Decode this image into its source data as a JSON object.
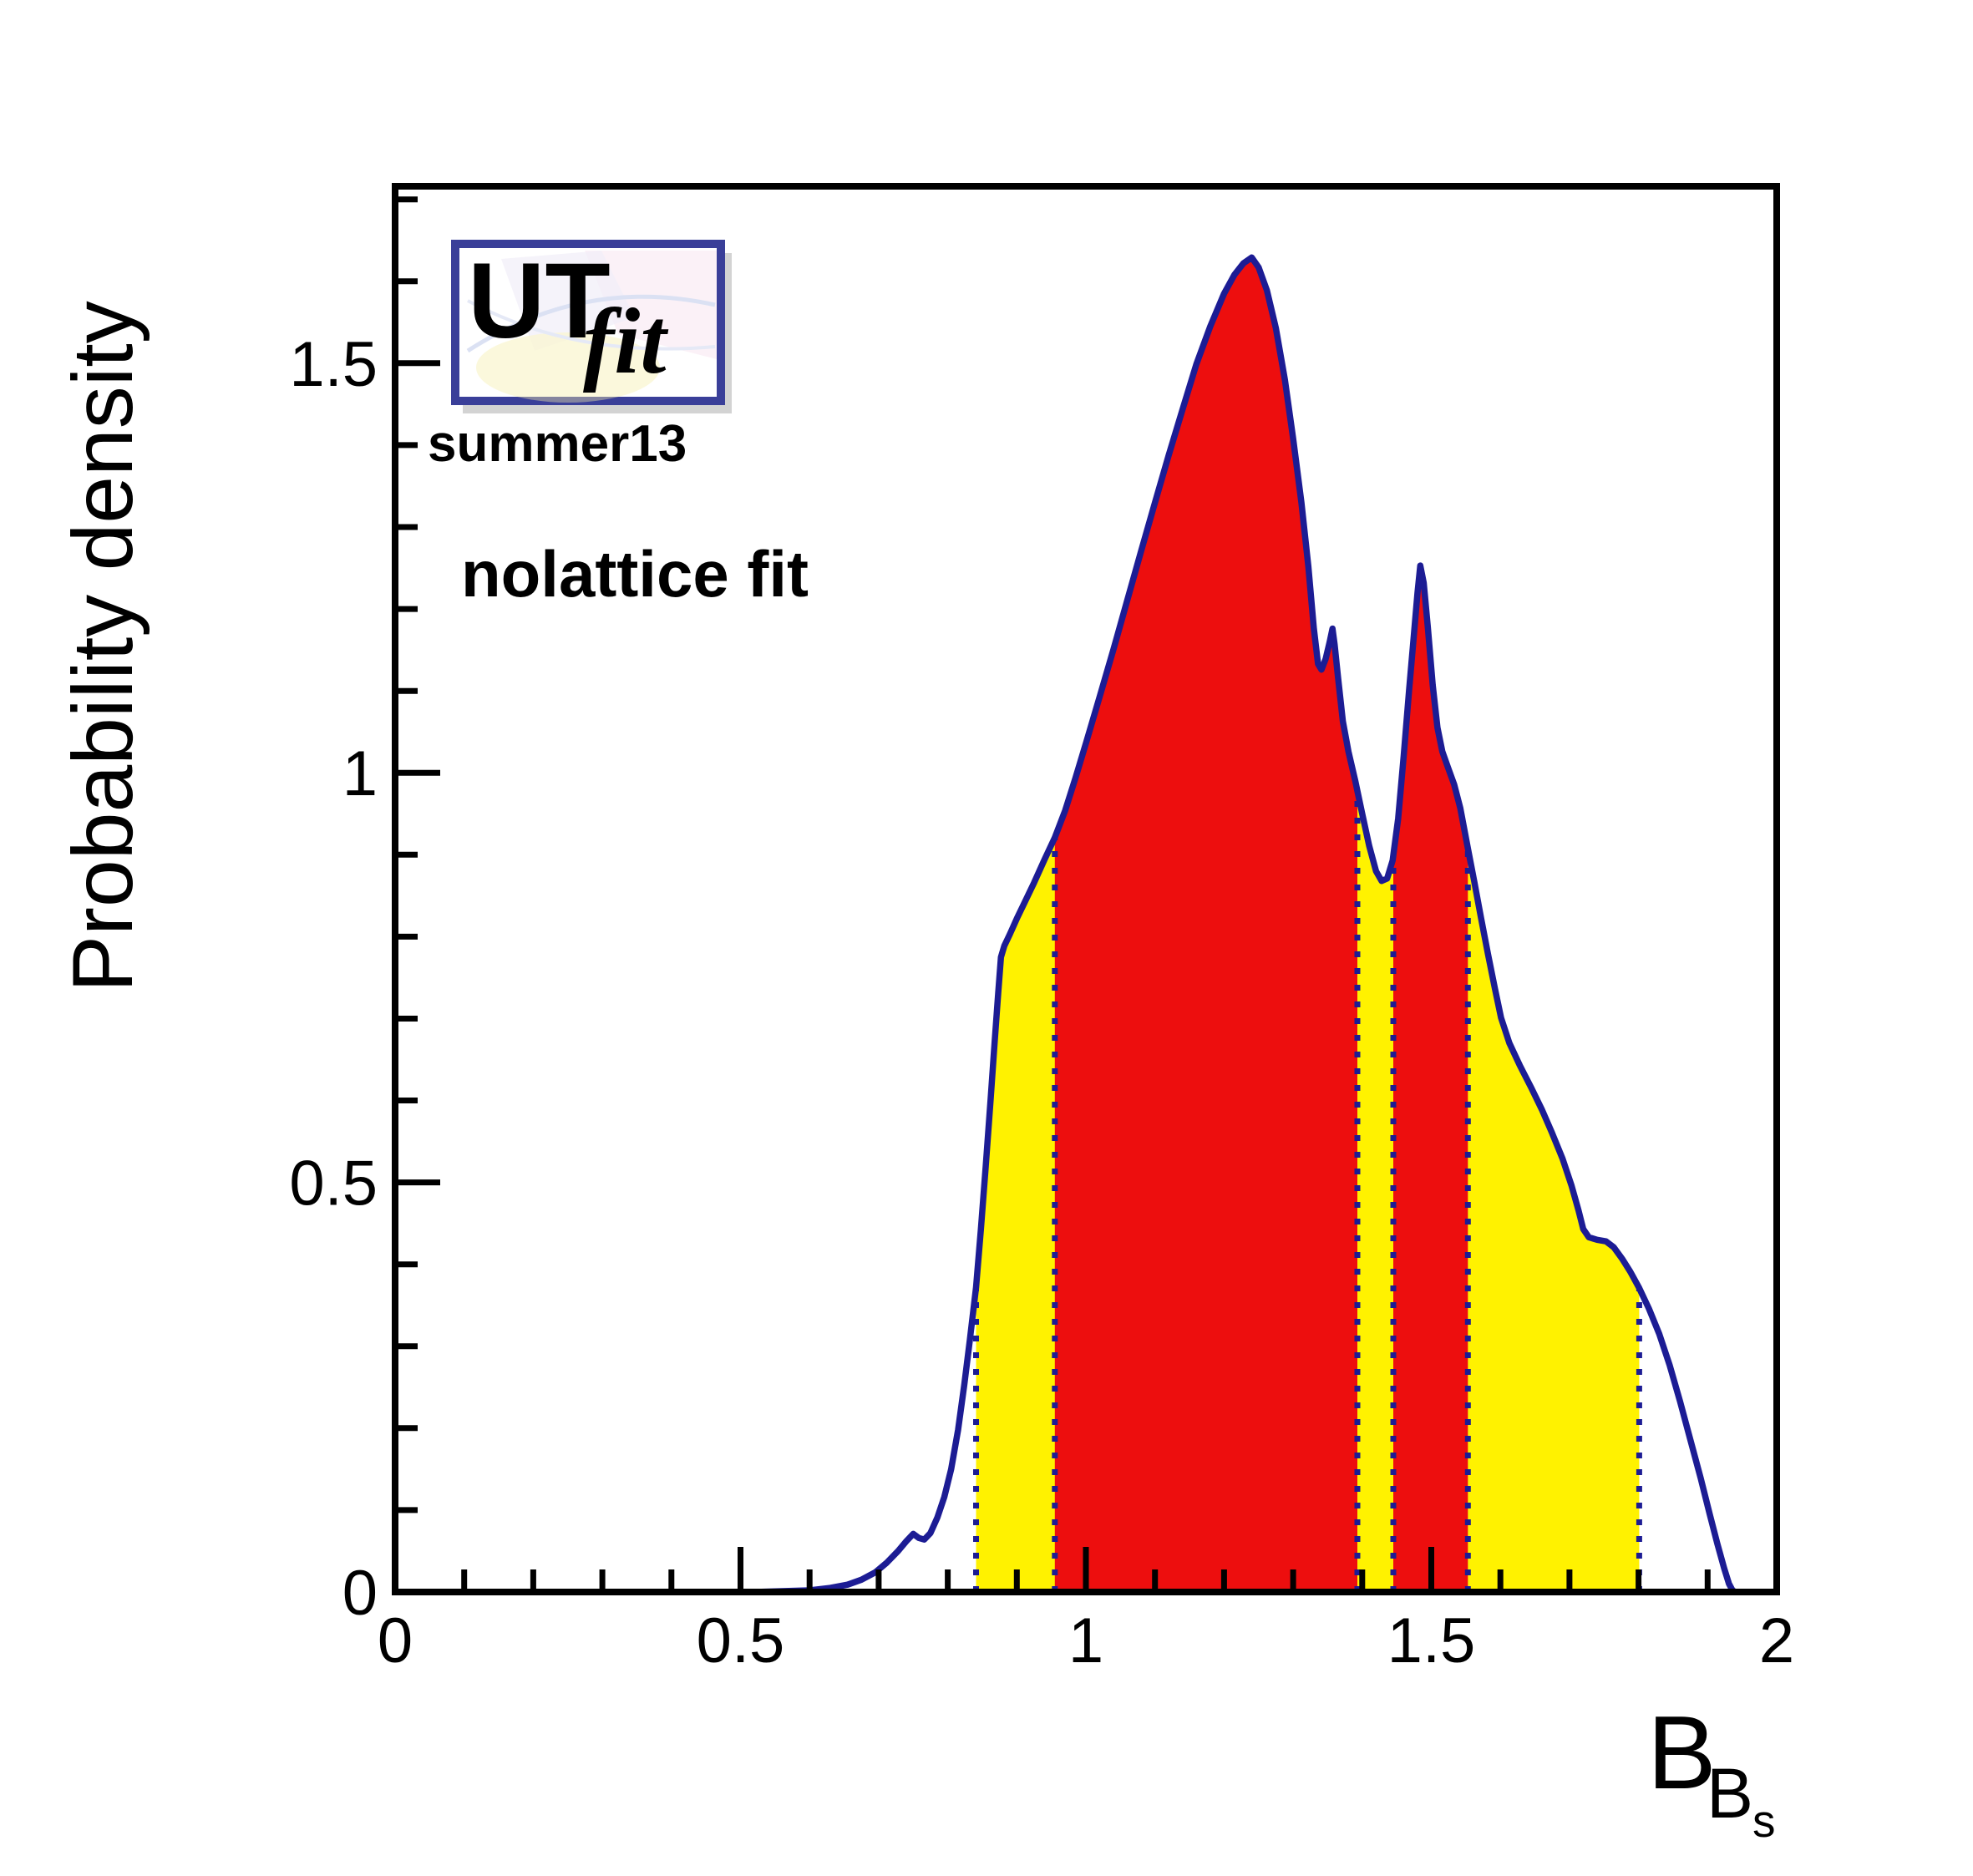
{
  "header": {
    "logo": {
      "ut": "UT",
      "fit": "fit"
    },
    "edition": "summer13",
    "fit_label": "nolattice fit"
  },
  "axes": {
    "x": {
      "title_main": "B",
      "title_sub": "B",
      "title_subsub": "s",
      "range": [
        0,
        2
      ],
      "major_tick_values": [
        0,
        0.5,
        1,
        1.5,
        2
      ],
      "major_tick_labels": [
        "0",
        "0.5",
        "1",
        "1.5",
        "2"
      ],
      "minor_tick_step": 0.1
    },
    "y": {
      "title": "Probability density",
      "range": [
        0,
        1.716
      ],
      "major_tick_values": [
        0,
        0.5,
        1,
        1.5
      ],
      "major_tick_labels": [
        "0",
        "0.5",
        "1",
        "1.5"
      ],
      "minor_tick_step": 0.1
    }
  },
  "chart_data": {
    "type": "area",
    "title": "",
    "xlabel": "B_{B_s}",
    "ylabel": "Probability density",
    "xlim": [
      0,
      2
    ],
    "ylim": [
      0,
      1.716
    ],
    "grid": false,
    "legend": "none",
    "peak": {
      "x": 1.24,
      "value": 1.63
    },
    "local_min": {
      "x": 1.34,
      "value": 1.13
    },
    "dip_min": {
      "x": 1.43,
      "value": 0.87
    },
    "second_peak": {
      "x": 1.48,
      "value": 1.25
    },
    "intervals_68pct": [
      [
        0.955,
        1.393
      ],
      [
        1.445,
        1.553
      ]
    ],
    "interval_95pct": [
      [
        0.841,
        1.801
      ]
    ],
    "curve": [
      [
        0.52,
        0.0
      ],
      [
        0.56,
        0.001
      ],
      [
        0.6,
        0.002
      ],
      [
        0.63,
        0.005
      ],
      [
        0.655,
        0.009
      ],
      [
        0.675,
        0.015
      ],
      [
        0.695,
        0.024
      ],
      [
        0.712,
        0.036
      ],
      [
        0.728,
        0.05
      ],
      [
        0.74,
        0.062
      ],
      [
        0.75,
        0.071
      ],
      [
        0.758,
        0.066
      ],
      [
        0.766,
        0.064
      ],
      [
        0.775,
        0.072
      ],
      [
        0.785,
        0.091
      ],
      [
        0.795,
        0.116
      ],
      [
        0.805,
        0.15
      ],
      [
        0.815,
        0.198
      ],
      [
        0.824,
        0.253
      ],
      [
        0.832,
        0.308
      ],
      [
        0.841,
        0.372
      ],
      [
        0.848,
        0.443
      ],
      [
        0.855,
        0.52
      ],
      [
        0.862,
        0.601
      ],
      [
        0.868,
        0.672
      ],
      [
        0.873,
        0.731
      ],
      [
        0.877,
        0.775
      ],
      [
        0.882,
        0.789
      ],
      [
        0.89,
        0.803
      ],
      [
        0.9,
        0.822
      ],
      [
        0.912,
        0.843
      ],
      [
        0.925,
        0.866
      ],
      [
        0.94,
        0.894
      ],
      [
        0.955,
        0.921
      ],
      [
        0.97,
        0.954
      ],
      [
        0.985,
        0.994
      ],
      [
        1.0,
        1.036
      ],
      [
        1.02,
        1.093
      ],
      [
        1.04,
        1.151
      ],
      [
        1.06,
        1.211
      ],
      [
        1.08,
        1.271
      ],
      [
        1.1,
        1.33
      ],
      [
        1.12,
        1.388
      ],
      [
        1.14,
        1.444
      ],
      [
        1.16,
        1.499
      ],
      [
        1.18,
        1.545
      ],
      [
        1.2,
        1.585
      ],
      [
        1.215,
        1.608
      ],
      [
        1.228,
        1.622
      ],
      [
        1.24,
        1.629
      ],
      [
        1.25,
        1.617
      ],
      [
        1.262,
        1.589
      ],
      [
        1.275,
        1.543
      ],
      [
        1.288,
        1.48
      ],
      [
        1.3,
        1.408
      ],
      [
        1.312,
        1.33
      ],
      [
        1.322,
        1.252
      ],
      [
        1.33,
        1.176
      ],
      [
        1.336,
        1.133
      ],
      [
        1.341,
        1.126
      ],
      [
        1.347,
        1.139
      ],
      [
        1.353,
        1.16
      ],
      [
        1.357,
        1.176
      ],
      [
        1.36,
        1.157
      ],
      [
        1.365,
        1.116
      ],
      [
        1.372,
        1.063
      ],
      [
        1.38,
        1.026
      ],
      [
        1.39,
        0.99
      ],
      [
        1.4,
        0.95
      ],
      [
        1.41,
        0.911
      ],
      [
        1.42,
        0.88
      ],
      [
        1.428,
        0.868
      ],
      [
        1.436,
        0.871
      ],
      [
        1.444,
        0.893
      ],
      [
        1.452,
        0.944
      ],
      [
        1.46,
        1.02
      ],
      [
        1.468,
        1.102
      ],
      [
        1.475,
        1.17
      ],
      [
        1.48,
        1.22
      ],
      [
        1.484,
        1.253
      ],
      [
        1.489,
        1.232
      ],
      [
        1.495,
        1.177
      ],
      [
        1.502,
        1.107
      ],
      [
        1.509,
        1.055
      ],
      [
        1.516,
        1.026
      ],
      [
        1.524,
        1.007
      ],
      [
        1.533,
        0.986
      ],
      [
        1.542,
        0.957
      ],
      [
        1.552,
        0.912
      ],
      [
        1.562,
        0.868
      ],
      [
        1.572,
        0.823
      ],
      [
        1.582,
        0.779
      ],
      [
        1.592,
        0.737
      ],
      [
        1.601,
        0.701
      ],
      [
        1.613,
        0.67
      ],
      [
        1.628,
        0.643
      ],
      [
        1.645,
        0.615
      ],
      [
        1.66,
        0.589
      ],
      [
        1.675,
        0.56
      ],
      [
        1.69,
        0.529
      ],
      [
        1.703,
        0.496
      ],
      [
        1.713,
        0.466
      ],
      [
        1.72,
        0.443
      ],
      [
        1.728,
        0.433
      ],
      [
        1.74,
        0.43
      ],
      [
        1.753,
        0.428
      ],
      [
        1.764,
        0.421
      ],
      [
        1.776,
        0.407
      ],
      [
        1.788,
        0.391
      ],
      [
        1.801,
        0.371
      ],
      [
        1.815,
        0.346
      ],
      [
        1.83,
        0.315
      ],
      [
        1.845,
        0.277
      ],
      [
        1.86,
        0.233
      ],
      [
        1.875,
        0.186
      ],
      [
        1.89,
        0.139
      ],
      [
        1.903,
        0.095
      ],
      [
        1.914,
        0.059
      ],
      [
        1.924,
        0.029
      ],
      [
        1.931,
        0.01
      ],
      [
        1.936,
        0.002
      ],
      [
        1.94,
        0.0
      ]
    ],
    "colors": {
      "curve": "#1c1c94",
      "dotted": "#1c1c94",
      "fill_68": "#ed0e0e",
      "fill_95": "#fff200",
      "axis": "#000000",
      "logo_navy": "#343a90",
      "logo_red": "#d92b2b",
      "logo_border": "#3a3f99",
      "edition_navy": "#2b3590",
      "fit_text_black": "#000000"
    }
  }
}
